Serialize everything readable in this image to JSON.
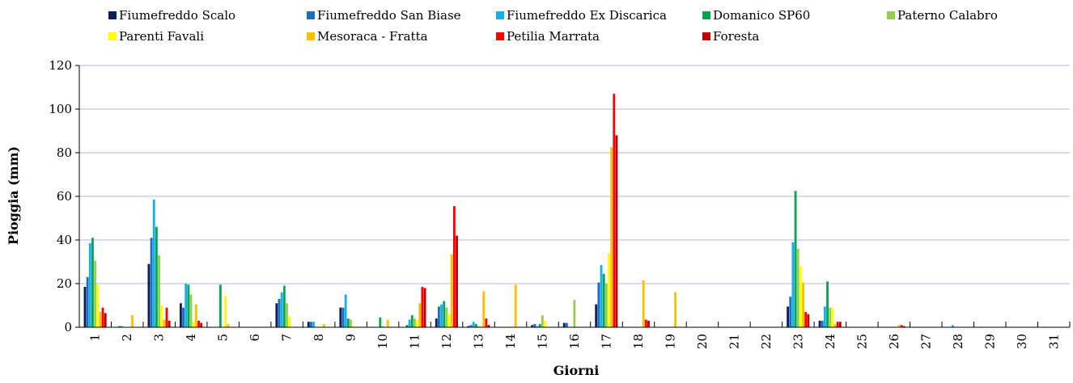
{
  "chart_data": {
    "type": "bar",
    "xlabel": "Giorni",
    "ylabel": "Pioggia (mm)",
    "ylim": [
      0,
      120
    ],
    "yticks": [
      "0",
      "20",
      "40",
      "60",
      "80",
      "100",
      "120"
    ],
    "grid": "horizontal",
    "legend_position": "top",
    "categories": [
      "1",
      "2",
      "3",
      "4",
      "5",
      "6",
      "7",
      "8",
      "9",
      "10",
      "11",
      "12",
      "13",
      "14",
      "15",
      "16",
      "17",
      "18",
      "19",
      "20",
      "21",
      "22",
      "23",
      "24",
      "25",
      "26",
      "27",
      "28",
      "29",
      "30",
      "31"
    ],
    "series": [
      {
        "name": "Fiumefreddo Scalo",
        "color": "#0d1e5c",
        "values": [
          18.5,
          0,
          29,
          11,
          0,
          0,
          11,
          2.5,
          9,
          0,
          0,
          4,
          0.5,
          0,
          1,
          2,
          10.5,
          0,
          0,
          0,
          0,
          0,
          9.5,
          3,
          0,
          0,
          0,
          0,
          0,
          0,
          0
        ]
      },
      {
        "name": "Fiumefreddo San Biase",
        "color": "#1b6fc0",
        "values": [
          23,
          0.5,
          41,
          9,
          0,
          0,
          13,
          2.5,
          9,
          0,
          1,
          9.5,
          1,
          0,
          1.5,
          2,
          20.5,
          0,
          0,
          0,
          0,
          0,
          14,
          3,
          0,
          0,
          0,
          0,
          0,
          0,
          0
        ]
      },
      {
        "name": "Fiumefreddo Ex Discarica",
        "color": "#13b0ec",
        "values": [
          38.5,
          0.5,
          58.5,
          20,
          0,
          0,
          16,
          2.5,
          15,
          0,
          3.5,
          10.5,
          2.5,
          0,
          0.5,
          0,
          28.5,
          0,
          0,
          0,
          0,
          0,
          39,
          9.5,
          0,
          0,
          0,
          1,
          0,
          0,
          0
        ]
      },
      {
        "name": "Domanico SP60",
        "color": "#0aa550",
        "values": [
          41,
          0,
          46,
          19.5,
          19.5,
          0,
          19,
          0,
          4,
          4.5,
          5.5,
          12,
          1.5,
          0,
          1.5,
          0,
          24.5,
          0,
          0,
          0,
          0,
          0,
          62.5,
          21,
          0,
          0,
          0,
          0,
          0,
          0,
          0
        ]
      },
      {
        "name": "Paterno Calabro",
        "color": "#92d050",
        "values": [
          30.5,
          0,
          33,
          15,
          0,
          0,
          11,
          0,
          3.5,
          0.5,
          4,
          9,
          0.5,
          0,
          5.5,
          12.5,
          20,
          0,
          0,
          0,
          0,
          0,
          36,
          9,
          0,
          0,
          0,
          0,
          0,
          0,
          0
        ]
      },
      {
        "name": "Parenti Favali",
        "color": "#ffff00",
        "values": [
          19.5,
          0,
          10,
          2.5,
          14.5,
          0,
          5,
          0,
          0.5,
          0,
          3.5,
          6,
          0.5,
          0,
          3,
          0,
          34,
          0,
          0,
          0,
          0,
          0,
          28,
          9,
          0,
          0,
          0,
          0,
          0,
          0,
          0
        ]
      },
      {
        "name": "Mesoraca - Fratta",
        "color": "#ffc000",
        "values": [
          7,
          5.5,
          3.5,
          10.5,
          1.5,
          0,
          0,
          1.5,
          0,
          3.5,
          11,
          33.5,
          16.5,
          19.5,
          0,
          0,
          82.5,
          21.5,
          16,
          0,
          0,
          0,
          20.5,
          1.5,
          0,
          1,
          0,
          0,
          0,
          0,
          0
        ]
      },
      {
        "name": "Petilia Marrata",
        "color": "#ff0000",
        "values": [
          9,
          0,
          9,
          3,
          0,
          0,
          0,
          0,
          0,
          0,
          18.5,
          55.5,
          4,
          0,
          0,
          0,
          107,
          3.5,
          0,
          0,
          0,
          0,
          7,
          2.5,
          0,
          1,
          0,
          0,
          0,
          0,
          0
        ]
      },
      {
        "name": "Foresta",
        "color": "#c00000",
        "values": [
          6.5,
          0,
          3,
          2,
          0,
          0,
          0,
          0,
          0,
          0,
          18,
          42,
          1,
          0,
          0,
          0,
          88,
          3,
          0,
          0,
          0,
          0,
          6,
          2.5,
          0,
          0.5,
          0,
          0,
          0,
          0,
          0
        ]
      }
    ]
  }
}
